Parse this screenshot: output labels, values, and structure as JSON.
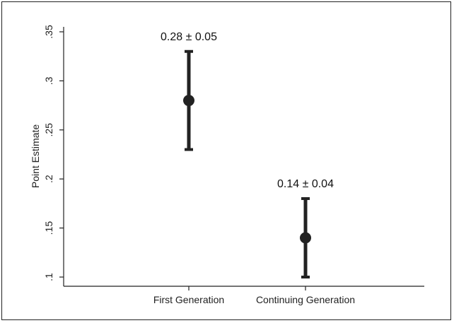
{
  "chart_data": {
    "type": "scatter",
    "title": "",
    "xlabel": "",
    "ylabel": "Point Estimate",
    "categories": [
      "First Generation",
      "Continuing Generation"
    ],
    "points": [
      {
        "category": "First Generation",
        "estimate": 0.28,
        "lower": 0.23,
        "upper": 0.33,
        "label": "0.28 ± 0.05"
      },
      {
        "category": "Continuing Generation",
        "estimate": 0.14,
        "lower": 0.1,
        "upper": 0.18,
        "label": "0.14 ± 0.04"
      }
    ],
    "yticks": [
      0.1,
      0.15,
      0.2,
      0.25,
      0.3,
      0.35
    ],
    "ytick_labels": [
      ".1",
      ".15",
      ".2",
      ".25",
      ".3",
      ".35"
    ],
    "ylim": [
      0.1,
      0.35
    ],
    "grid": false,
    "error_bars": true,
    "color": "#222222"
  }
}
